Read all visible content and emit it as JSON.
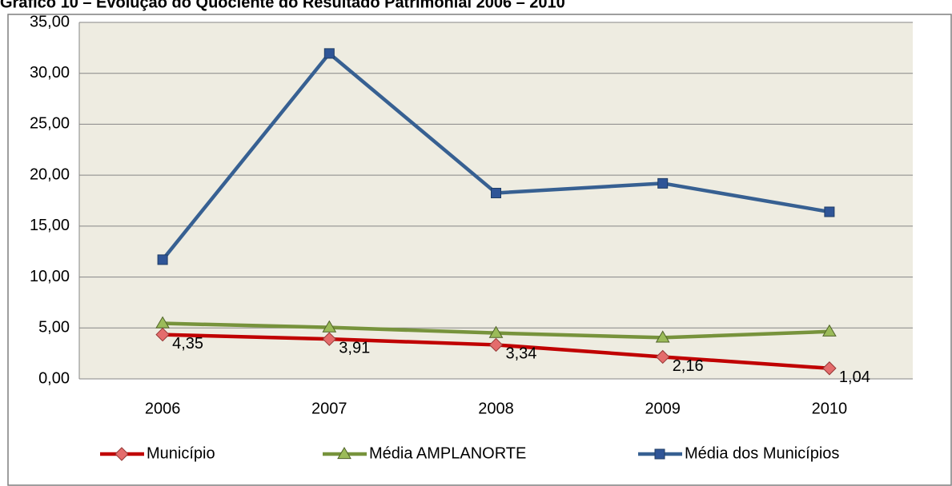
{
  "chart_data": {
    "type": "line",
    "title": "Gráfico 10 – Evolução do Quociente do Resultado Patrimonial 2006 – 2010",
    "categories": [
      "2006",
      "2007",
      "2008",
      "2009",
      "2010"
    ],
    "series": [
      {
        "name": "Município",
        "color": "#c00000",
        "marker": "diamond",
        "values": [
          4.35,
          3.91,
          3.34,
          2.16,
          1.04
        ],
        "value_labels": [
          "4,35",
          "3,91",
          "3,34",
          "2,16",
          "1,04"
        ]
      },
      {
        "name": "Média AMPLANORTE",
        "color": "#77933c",
        "marker": "triangle",
        "values": [
          5.45,
          5.05,
          4.5,
          4.05,
          4.65
        ]
      },
      {
        "name": "Média dos Municípios",
        "color": "#376092",
        "marker": "square",
        "values": [
          11.7,
          31.95,
          18.25,
          19.2,
          16.4
        ]
      }
    ],
    "ylim": [
      0,
      35
    ],
    "yticks": [
      {
        "value": 0,
        "label": "0,00"
      },
      {
        "value": 5,
        "label": "5,00"
      },
      {
        "value": 10,
        "label": "10,00"
      },
      {
        "value": 15,
        "label": "15,00"
      },
      {
        "value": 20,
        "label": "20,00"
      },
      {
        "value": 25,
        "label": "25,00"
      },
      {
        "value": 30,
        "label": "30,00"
      },
      {
        "value": 35,
        "label": "35,00"
      }
    ],
    "grid": true,
    "legend": "bottom"
  }
}
